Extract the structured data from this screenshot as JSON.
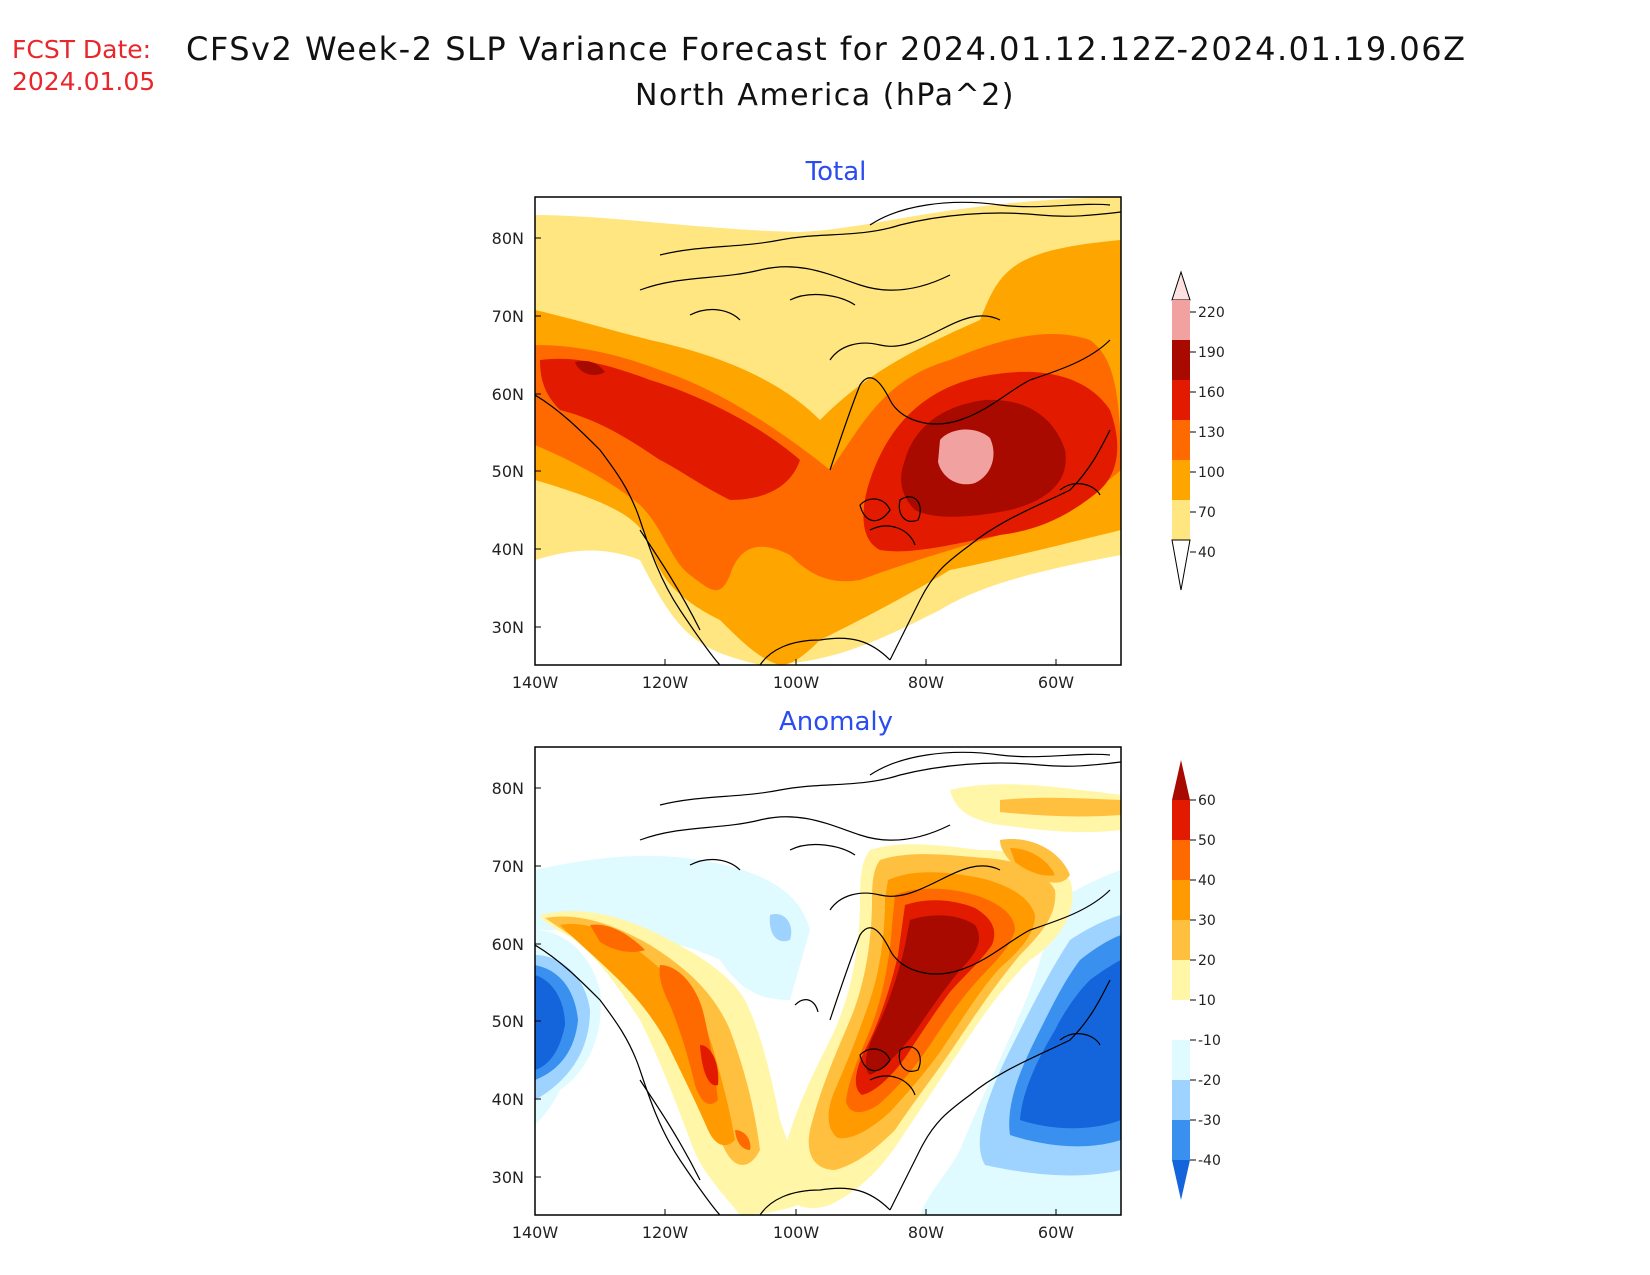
{
  "header": {
    "fcst_label": "FCST Date:",
    "fcst_date": "2024.01.05",
    "title": "CFSv2 Week-2 SLP Variance Forecast for 2024.01.12.12Z-2024.01.19.06Z",
    "subtitle": "North America (hPa^2)"
  },
  "colors": {
    "header_red": "#e8262b",
    "panel_title_blue": "#2a4cf0"
  },
  "panels": {
    "total": {
      "title": "Total",
      "lat_labels": [
        "80N",
        "70N",
        "60N",
        "50N",
        "40N",
        "30N"
      ],
      "lon_labels": [
        "140W",
        "120W",
        "100W",
        "80W",
        "60W"
      ],
      "colorbar": {
        "levels": [
          "40",
          "70",
          "100",
          "130",
          "160",
          "190",
          "220"
        ],
        "colors": [
          "#ffe680",
          "#ffa500",
          "#ff6a00",
          "#e11a00",
          "#a80a00",
          "#f2a1a1",
          "#fde1e1"
        ]
      }
    },
    "anomaly": {
      "title": "Anomaly",
      "lat_labels": [
        "80N",
        "70N",
        "60N",
        "50N",
        "40N",
        "30N"
      ],
      "lon_labels": [
        "140W",
        "120W",
        "100W",
        "80W",
        "60W"
      ],
      "colorbar": {
        "levels": [
          "60",
          "50",
          "40",
          "30",
          "20",
          "10",
          "-10",
          "-20",
          "-30",
          "-40"
        ],
        "colors": [
          "#a80a00",
          "#e11a00",
          "#ff6a00",
          "#ff9a00",
          "#ffc040",
          "#fff6a8",
          "#ffffff",
          "#e0fbff",
          "#9fd3ff",
          "#3a90ef",
          "#1464dc"
        ]
      }
    }
  }
}
